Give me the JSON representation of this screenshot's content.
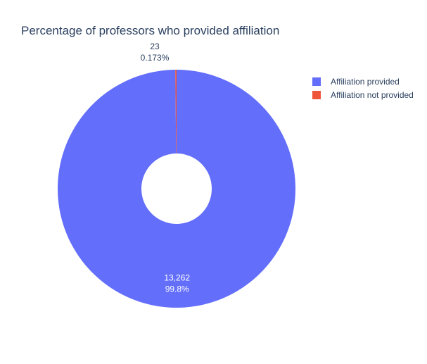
{
  "chart_data": {
    "type": "pie",
    "title": "Percentage of professors who provided affiliation",
    "hole": true,
    "legend_position": "top-right",
    "slices": [
      {
        "label": "Affiliation provided",
        "value": 13262,
        "value_text": "13,262",
        "percent_text": "99.8%",
        "color": "#636efa",
        "label_position": "inside"
      },
      {
        "label": "Affiliation not provided",
        "value": 23,
        "value_text": "23",
        "percent_text": "0.173%",
        "color": "#ef553b",
        "label_position": "outside"
      }
    ]
  }
}
